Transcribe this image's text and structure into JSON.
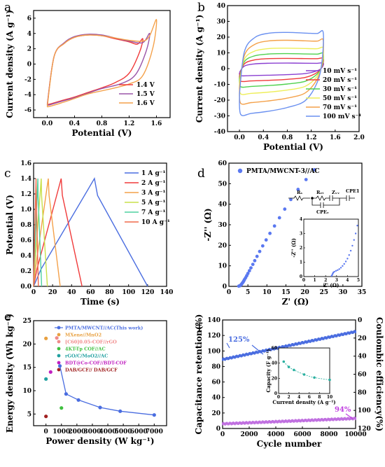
{
  "chart_data": [
    {
      "id": "a",
      "panel_label": "a",
      "type": "line",
      "xlabel": "Potential (V)",
      "ylabel": "Current density (A g⁻¹)",
      "xlim": [
        -0.2,
        1.8
      ],
      "ylim": [
        -7,
        7
      ],
      "xticks": [
        "0.0",
        "0.4",
        "0.8",
        "1.2",
        "1.6"
      ],
      "yticks": [
        "-6",
        "-4",
        "-2",
        "0",
        "2",
        "4",
        "6"
      ],
      "legend_position": "bottom-right",
      "series": [
        {
          "name": "1.4 V",
          "color": "#f03a3a",
          "vmax": 1.4,
          "upper": [
            [
              0,
              -5.3
            ],
            [
              0.1,
              1.0
            ],
            [
              0.25,
              2.7
            ],
            [
              0.4,
              3.5
            ],
            [
              0.6,
              3.8
            ],
            [
              0.8,
              3.7
            ],
            [
              1.0,
              3.3
            ],
            [
              1.2,
              2.9
            ],
            [
              1.32,
              2.6
            ],
            [
              1.4,
              3.3
            ]
          ],
          "lower": [
            [
              1.4,
              3.3
            ],
            [
              1.35,
              1.5
            ],
            [
              1.2,
              -1.2
            ],
            [
              1.0,
              -2.4
            ],
            [
              0.8,
              -3.1
            ],
            [
              0.6,
              -3.7
            ],
            [
              0.4,
              -4.3
            ],
            [
              0.2,
              -4.8
            ],
            [
              0.05,
              -5.2
            ],
            [
              0,
              -5.3
            ]
          ]
        },
        {
          "name": "1.5 V",
          "color": "#9a55a8",
          "vmax": 1.5,
          "upper": [
            [
              0,
              -5.4
            ],
            [
              0.1,
              1.0
            ],
            [
              0.25,
              2.8
            ],
            [
              0.4,
              3.6
            ],
            [
              0.6,
              3.9
            ],
            [
              0.8,
              3.8
            ],
            [
              1.0,
              3.4
            ],
            [
              1.2,
              3.0
            ],
            [
              1.4,
              2.8
            ],
            [
              1.5,
              4.0
            ]
          ],
          "lower": [
            [
              1.5,
              4.0
            ],
            [
              1.45,
              1.7
            ],
            [
              1.3,
              -1.3
            ],
            [
              1.1,
              -2.5
            ],
            [
              0.8,
              -3.2
            ],
            [
              0.6,
              -3.8
            ],
            [
              0.4,
              -4.4
            ],
            [
              0.2,
              -4.9
            ],
            [
              0.05,
              -5.3
            ],
            [
              0,
              -5.4
            ]
          ]
        },
        {
          "name": "1.6 V",
          "color": "#f4a14a",
          "vmax": 1.6,
          "upper": [
            [
              0,
              -5.6
            ],
            [
              0.1,
              1.0
            ],
            [
              0.25,
              2.7
            ],
            [
              0.4,
              3.5
            ],
            [
              0.6,
              3.8
            ],
            [
              0.8,
              3.7
            ],
            [
              1.0,
              3.4
            ],
            [
              1.2,
              3.1
            ],
            [
              1.4,
              3.0
            ],
            [
              1.5,
              3.7
            ],
            [
              1.6,
              5.8
            ]
          ],
          "lower": [
            [
              1.6,
              5.8
            ],
            [
              1.55,
              2.2
            ],
            [
              1.4,
              -1.5
            ],
            [
              1.2,
              -2.6
            ],
            [
              0.9,
              -3.3
            ],
            [
              0.6,
              -3.9
            ],
            [
              0.4,
              -4.5
            ],
            [
              0.2,
              -5.1
            ],
            [
              0.05,
              -5.5
            ],
            [
              0,
              -5.6
            ]
          ]
        }
      ]
    },
    {
      "id": "b",
      "panel_label": "b",
      "type": "line",
      "xlabel": "Potential (V)",
      "ylabel": "Current density (A g⁻¹)",
      "xlim": [
        -0.2,
        2.0
      ],
      "ylim": [
        -40,
        40
      ],
      "xticks": [
        "0.0",
        "0.4",
        "0.8",
        "1.2",
        "1.6",
        "2.0"
      ],
      "yticks": [
        "-40",
        "-30",
        "-20",
        "-10",
        "0",
        "10",
        "20",
        "30",
        "40"
      ],
      "legend_position": "right",
      "series": [
        {
          "name": "10 mV s⁻¹",
          "color": "#8a3fd1",
          "ip": 3.5,
          "im": -4.5
        },
        {
          "name": "20 mV s⁻¹",
          "color": "#f03a3a",
          "ip": 6.5,
          "im": -8
        },
        {
          "name": "30 mV s⁻¹",
          "color": "#4fd14f",
          "ip": 9.5,
          "im": -11.5
        },
        {
          "name": "50 mV s⁻¹",
          "color": "#eeee5a",
          "ip": 13,
          "im": -16
        },
        {
          "name": "70 mV s⁻¹",
          "color": "#f4a14a",
          "ip": 18,
          "im": -22
        },
        {
          "name": "100 mV s⁻¹",
          "color": "#6a90f0",
          "ip": 23,
          "im": -29
        }
      ]
    },
    {
      "id": "c",
      "panel_label": "c",
      "type": "line",
      "xlabel": "Time (s)",
      "ylabel": "Potential (V)",
      "xlim": [
        0,
        140
      ],
      "ylim": [
        0,
        1.6
      ],
      "xticks": [
        "0",
        "20",
        "40",
        "60",
        "80",
        "100",
        "120",
        "140"
      ],
      "yticks": [
        "0.0",
        "0.2",
        "0.4",
        "0.6",
        "0.8",
        "1.0",
        "1.2",
        "1.4",
        "1.6"
      ],
      "legend_position": "top-right",
      "series": [
        {
          "name": "1 A g⁻¹",
          "color": "#4a6de0",
          "peak": 64,
          "end": 120
        },
        {
          "name": "2 A g⁻¹",
          "color": "#f03a3a",
          "peak": 29,
          "end": 51
        },
        {
          "name": "3 A g⁻¹",
          "color": "#f4a14a",
          "peak": 15.5,
          "end": 28
        },
        {
          "name": "5 A g⁻¹",
          "color": "#c8e04a",
          "peak": 8,
          "end": 14.5
        },
        {
          "name": "7 A g⁻¹",
          "color": "#4fd1a0",
          "peak": 4.5,
          "end": 8.5
        },
        {
          "name": "10 A g⁻¹",
          "color": "#f06a4a",
          "peak": 2.6,
          "end": 5
        }
      ]
    },
    {
      "id": "d",
      "panel_label": "d",
      "type": "scatter",
      "xlabel": "Z' (Ω)",
      "ylabel": "-Z'' (Ω)",
      "xlim": [
        0,
        35
      ],
      "ylim": [
        0,
        60
      ],
      "xticks": [
        "0",
        "5",
        "10",
        "15",
        "20",
        "25",
        "30",
        "35"
      ],
      "yticks": [
        "0",
        "10",
        "20",
        "30",
        "40",
        "50",
        "60"
      ],
      "legend": "PMTA/MWCNT-3//AC",
      "color": "#5a78f0",
      "points": [
        [
          2.6,
          0.1
        ],
        [
          2.9,
          0.3
        ],
        [
          3.1,
          0.6
        ],
        [
          3.3,
          1.0
        ],
        [
          3.5,
          1.5
        ],
        [
          3.7,
          2.0
        ],
        [
          3.9,
          2.6
        ],
        [
          4.1,
          3.3
        ],
        [
          4.4,
          4.2
        ],
        [
          4.7,
          5.2
        ],
        [
          5.0,
          6.3
        ],
        [
          5.4,
          7.6
        ],
        [
          5.8,
          9.0
        ],
        [
          6.3,
          10.7
        ],
        [
          6.8,
          12.5
        ],
        [
          7.4,
          14.6
        ],
        [
          8.1,
          17.0
        ],
        [
          8.9,
          19.7
        ],
        [
          9.8,
          22.6
        ],
        [
          10.8,
          25.8
        ],
        [
          12.0,
          29.4
        ],
        [
          13.3,
          33.4
        ],
        [
          14.7,
          37.6
        ],
        [
          16.3,
          42.3
        ],
        [
          18.2,
          47.2
        ],
        [
          20.3,
          52.0
        ],
        [
          22.5,
          56.8
        ]
      ],
      "circuit_labels": {
        "rs": "Rₛ",
        "rct": "Rₑₜ",
        "zw": "Zᵥᵥ",
        "cpe1": "CPE1",
        "cpedl": "CPEₑ"
      },
      "inset": {
        "xlabel": "Z' (Ω)",
        "ylabel": "-Z'' (Ω)",
        "xlim": [
          0,
          5
        ],
        "ylim": [
          0,
          4
        ],
        "xticks": [
          "0",
          "1",
          "2",
          "3",
          "4",
          "5"
        ],
        "yticks": [
          "0",
          "1",
          "2",
          "3",
          "4"
        ],
        "points": [
          [
            2.55,
            0.05
          ],
          [
            2.6,
            0.12
          ],
          [
            2.65,
            0.2
          ],
          [
            2.7,
            0.28
          ],
          [
            2.8,
            0.34
          ],
          [
            2.95,
            0.4
          ],
          [
            3.1,
            0.45
          ],
          [
            3.25,
            0.52
          ],
          [
            3.4,
            0.62
          ],
          [
            3.55,
            0.74
          ],
          [
            3.7,
            0.88
          ],
          [
            3.85,
            1.05
          ],
          [
            4.0,
            1.25
          ],
          [
            4.15,
            1.5
          ],
          [
            4.3,
            1.8
          ],
          [
            4.45,
            2.15
          ],
          [
            4.6,
            2.55
          ],
          [
            4.75,
            3.0
          ],
          [
            4.9,
            3.55
          ]
        ]
      }
    },
    {
      "id": "e",
      "panel_label": "e",
      "type": "line",
      "xlabel": "Power density (W kg⁻¹)",
      "ylabel": "Energy density (Wh kg⁻¹)",
      "xlim": [
        -800,
        7800
      ],
      "ylim": [
        2.5,
        25
      ],
      "xticks": [
        "0",
        "1000",
        "2000",
        "3000",
        "4000",
        "5000",
        "6000",
        "7000"
      ],
      "yticks": [
        "5",
        "10",
        "15",
        "20",
        "25"
      ],
      "legend_position": "top",
      "series": [
        {
          "name": "PMTA/MWCNT//AC(This work)",
          "color": "#4a6de0",
          "marker": "circle",
          "points": [
            [
              900,
              15.3
            ],
            [
              1300,
              9.3
            ],
            [
              2100,
              8.0
            ],
            [
              3500,
              6.4
            ],
            [
              4800,
              5.6
            ],
            [
              7000,
              4.8
            ]
          ]
        },
        {
          "name": "MXene//MnO2",
          "color": "#e8a040",
          "points": [
            [
              0,
              21.2
            ]
          ]
        },
        {
          "name": "[C60]0.05-COF//rGO",
          "color": "#f08a8a",
          "points": [
            [
              700,
              21.3
            ]
          ]
        },
        {
          "name": "4KT-Tp COF//AC",
          "color": "#40c040",
          "points": [
            [
              1000,
              6.3
            ]
          ]
        },
        {
          "name": "rGO/C/MoO2//AC",
          "color": "#20a0a0",
          "points": [
            [
              0,
              12.5
            ]
          ]
        },
        {
          "name": "BDT@Co-COF//BDT-COF",
          "color": "#c020c0",
          "points": [
            [
              300,
              14.0
            ]
          ]
        },
        {
          "name": "DAB/GCF// DAB/GCF",
          "color": "#a02020",
          "points": [
            [
              0,
              4.5
            ]
          ]
        }
      ]
    },
    {
      "id": "f",
      "panel_label": "f",
      "type": "scatter",
      "xlabel": "Cycle number",
      "ylabel": "Capacitance retention(%)",
      "y2label": "Coulombic efficiency(%)",
      "xlim": [
        0,
        10000
      ],
      "ylim": [
        0,
        140
      ],
      "y2lim": [
        120,
        0
      ],
      "xticks": [
        "0",
        "2000",
        "4000",
        "6000",
        "8000",
        "10000"
      ],
      "yticks": [
        "0",
        "20",
        "40",
        "60",
        "80",
        "100",
        "120",
        "140"
      ],
      "y2ticks": [
        "0",
        "20",
        "40",
        "60",
        "80",
        "100",
        "120"
      ],
      "annotations": [
        "125%",
        "94%"
      ],
      "series": [
        {
          "name": "Capacitance retention",
          "color": "#4a6de0",
          "start": 89,
          "end": 125
        },
        {
          "name": "Coulombic efficiency",
          "color": "#c070e0",
          "start": 6,
          "end": 13
        }
      ],
      "inset": {
        "xlabel": "Current density (A g⁻¹)",
        "ylabel": "Capacity (F g⁻¹)",
        "xlim": [
          0,
          10
        ],
        "ylim": [
          0,
          60
        ],
        "xticks": [
          "0",
          "2",
          "4",
          "6",
          "8",
          "10"
        ],
        "yticks": [
          "0",
          "20",
          "40",
          "60"
        ],
        "color": "#2ab0a0",
        "points": [
          [
            1,
            42
          ],
          [
            2,
            35
          ],
          [
            3,
            31
          ],
          [
            5,
            25
          ],
          [
            7,
            21
          ],
          [
            10,
            18
          ]
        ]
      }
    }
  ]
}
